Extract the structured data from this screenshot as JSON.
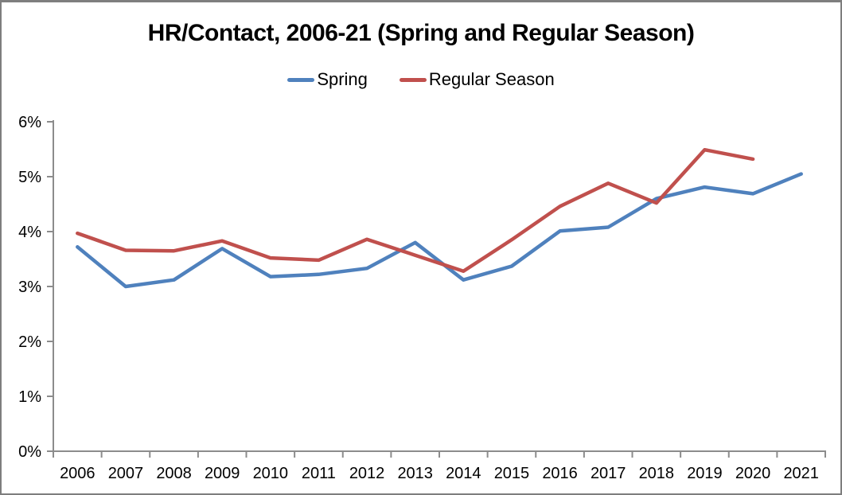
{
  "window": {
    "background": "#FFFFFF",
    "border_color": "#7E7E7E"
  },
  "chart_data": {
    "type": "line",
    "title": "HR/Contact, 2006-21 (Spring and Regular Season)",
    "categories": [
      "2006",
      "2007",
      "2008",
      "2009",
      "2010",
      "2011",
      "2012",
      "2013",
      "2014",
      "2015",
      "2016",
      "2017",
      "2018",
      "2019",
      "2020",
      "2021"
    ],
    "series": [
      {
        "name": "Spring",
        "color": "#4F81BD",
        "unit": "%",
        "values": [
          3.72,
          3.0,
          3.12,
          3.69,
          3.18,
          3.22,
          3.33,
          3.8,
          3.12,
          3.37,
          4.01,
          4.08,
          4.6,
          4.81,
          4.69,
          5.05
        ]
      },
      {
        "name": "Regular Season",
        "color": "#C0504D",
        "unit": "%",
        "values": [
          3.97,
          3.66,
          3.65,
          3.83,
          3.52,
          3.48,
          3.86,
          3.57,
          3.28,
          3.85,
          4.46,
          4.88,
          4.52,
          5.49,
          5.32,
          null
        ]
      }
    ],
    "xlabel": "",
    "ylabel": "",
    "ylim": [
      0,
      6
    ],
    "ytick_step": 1,
    "ytick_labels": [
      "0%",
      "1%",
      "2%",
      "3%",
      "4%",
      "5%",
      "6%"
    ],
    "legend_position": "top",
    "grid": false,
    "axis_color": "#8C8C8C",
    "text_color": "#000000"
  }
}
